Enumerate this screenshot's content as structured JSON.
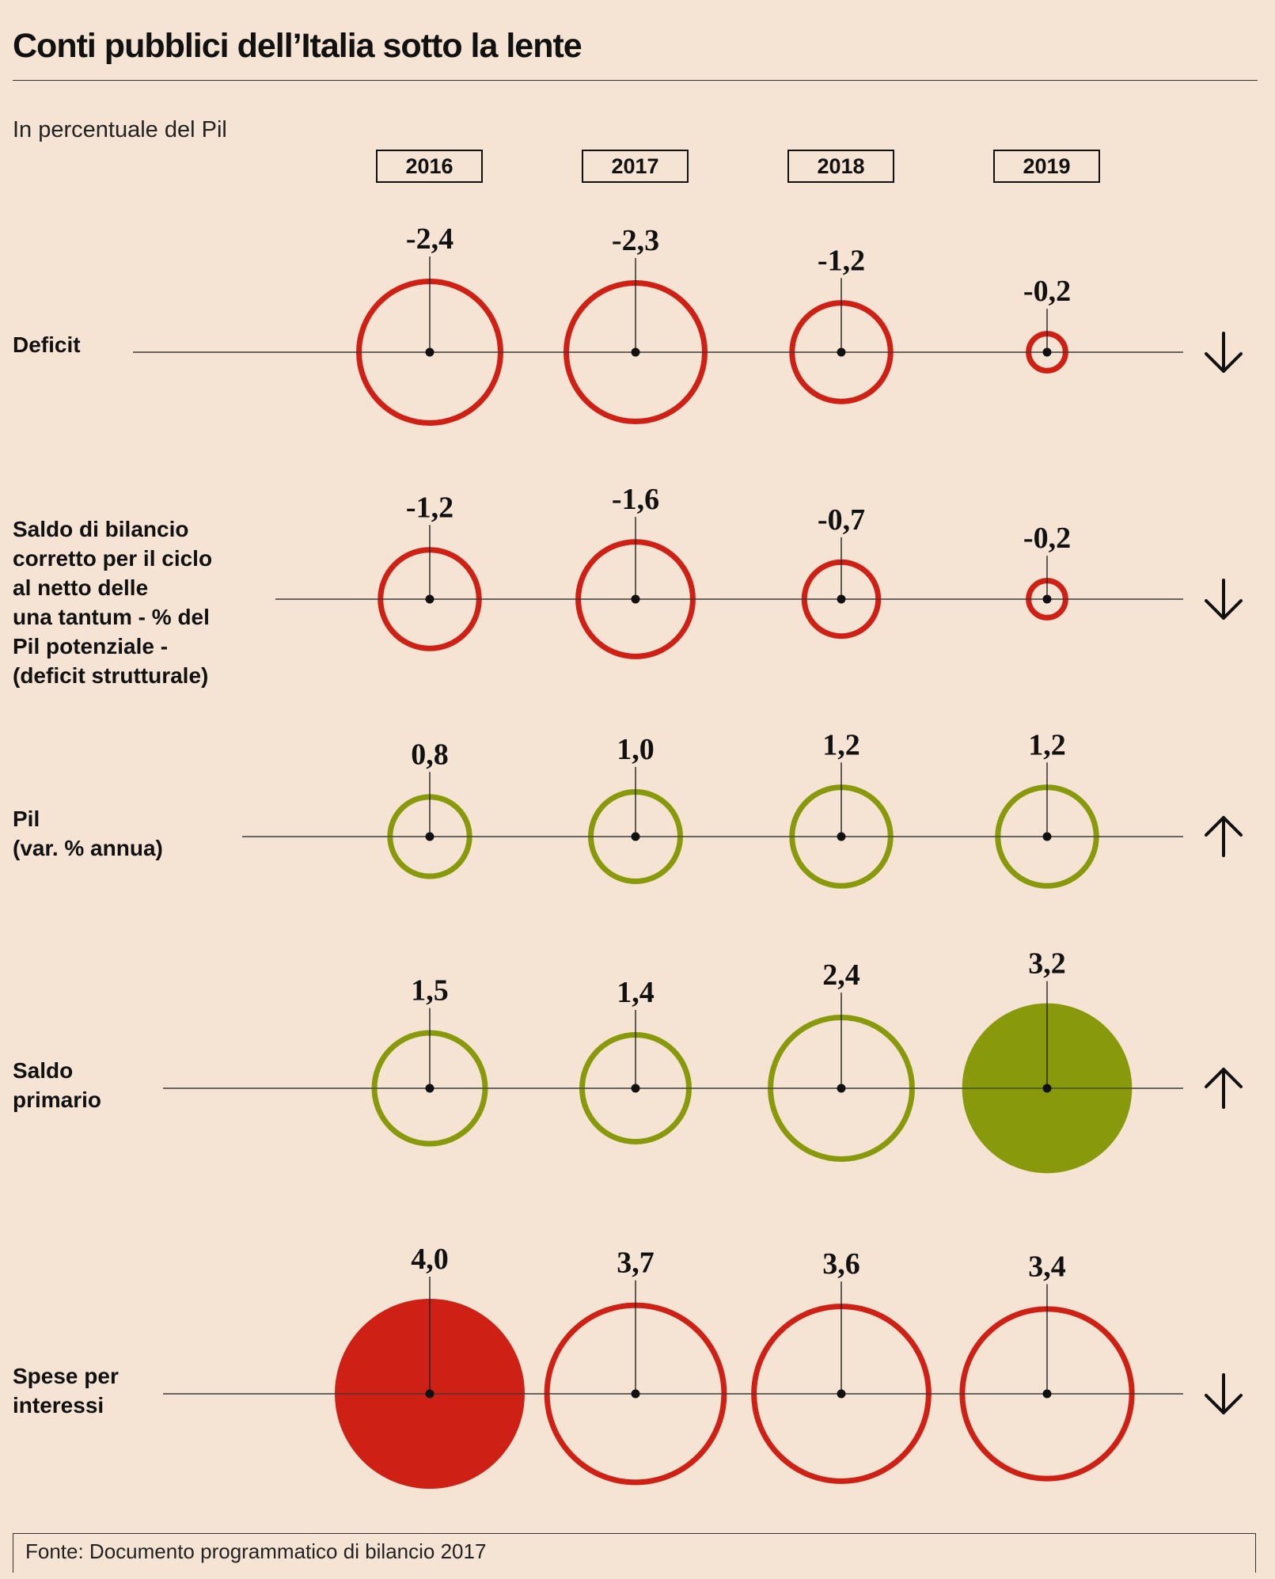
{
  "title": "Conti pubblici dell’Italia sotto la lente",
  "subtitle": "In percentuale del Pil",
  "source": "Fonte: Documento programmatico di bilancio 2017",
  "colors": {
    "background": "#f5e4d3",
    "negative_red": "#cf2016",
    "positive_olive": "#889a0c",
    "ink": "#111111"
  },
  "chart_data": {
    "type": "bubble-grid",
    "years": [
      "2016",
      "2017",
      "2018",
      "2019"
    ],
    "rows": [
      {
        "label": "Deficit",
        "values": [
          -2.4,
          -2.3,
          -1.2,
          -0.2
        ],
        "value_labels": [
          "-2,4",
          "-2,3",
          "-1,2",
          "-0,2"
        ],
        "color": "#cf2016",
        "filled_index": null,
        "trend": "down",
        "trend_icon": "arrow-down-icon"
      },
      {
        "label": "Saldo di bilancio\ncorretto per il ciclo\nal netto delle\nuna tantum - % del\nPil potenziale -\n(deficit strutturale)",
        "values": [
          -1.2,
          -1.6,
          -0.7,
          -0.2
        ],
        "value_labels": [
          "-1,2",
          "-1,6",
          "-0,7",
          "-0,2"
        ],
        "color": "#cf2016",
        "filled_index": null,
        "trend": "down",
        "trend_icon": "arrow-down-icon"
      },
      {
        "label": "Pil\n(var. % annua)",
        "values": [
          0.8,
          1.0,
          1.2,
          1.2
        ],
        "value_labels": [
          "0,8",
          "1,0",
          "1,2",
          "1,2"
        ],
        "color": "#889a0c",
        "filled_index": null,
        "trend": "up",
        "trend_icon": "arrow-up-icon"
      },
      {
        "label": "Saldo\nprimario",
        "values": [
          1.5,
          1.4,
          2.4,
          3.2
        ],
        "value_labels": [
          "1,5",
          "1,4",
          "2,4",
          "3,2"
        ],
        "color": "#889a0c",
        "filled_index": 3,
        "trend": "up",
        "trend_icon": "arrow-up-icon"
      },
      {
        "label": "Spese per\ninteressi",
        "values": [
          4.0,
          3.7,
          3.6,
          3.4
        ],
        "value_labels": [
          "4,0",
          "3,7",
          "3,6",
          "3,4"
        ],
        "color": "#cf2016",
        "filled_index": 0,
        "trend": "down",
        "trend_icon": "arrow-down-icon"
      }
    ]
  }
}
